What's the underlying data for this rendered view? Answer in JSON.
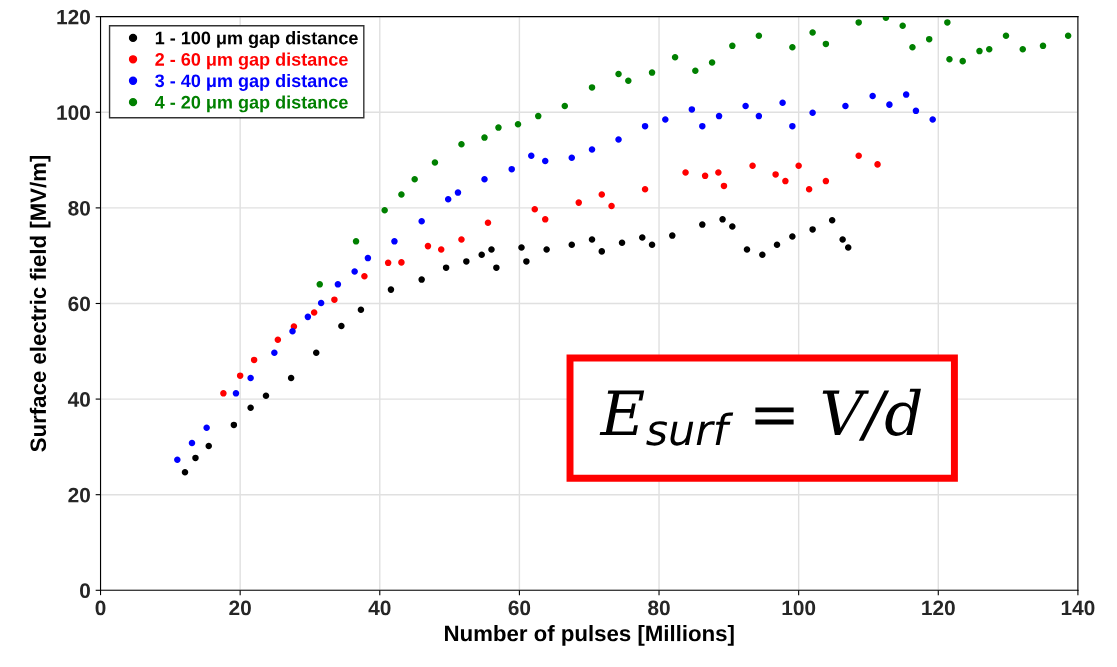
{
  "chart_data": {
    "type": "scatter",
    "xlabel": "Number of pulses [Millions]",
    "ylabel": "Surface electric field [MV/m]",
    "xlim": [
      0,
      140
    ],
    "xticks": [
      0,
      20,
      40,
      60,
      80,
      100,
      120,
      140
    ],
    "ylim": [
      0,
      120
    ],
    "yticks": [
      0,
      20,
      40,
      60,
      80,
      100,
      120
    ],
    "grid": true,
    "legend": "top left",
    "marker": "circle",
    "annotations": [
      "E$_{surf}$ = V/d"
    ],
    "series": [
      {
        "name": "1 - 100 μm gap distance",
        "color": "#000000",
        "x": [
          12.1,
          13.6,
          15.5,
          19.1,
          21.5,
          23.7,
          27.3,
          30.9,
          34.5,
          37.3,
          41.6,
          46,
          49.5,
          52.4,
          54.6,
          56,
          56.7,
          60.3,
          61,
          63.9,
          67.5,
          70.4,
          71.8,
          74.7,
          77.6,
          79,
          81.9,
          86.2,
          89.1,
          90.5,
          92.6,
          94.8,
          96.9,
          99.1,
          102,
          104.8,
          106.3,
          107.1
        ],
        "values": [
          24.7,
          27.7,
          30.2,
          34.6,
          38.2,
          40.7,
          44.4,
          49.7,
          55.3,
          58.7,
          62.9,
          65,
          67.5,
          68.8,
          70.2,
          71.3,
          67.5,
          71.7,
          68.8,
          71.3,
          72.3,
          73.4,
          70.9,
          72.7,
          73.8,
          72.3,
          74.2,
          76.5,
          77.6,
          76.1,
          71.3,
          70.2,
          72.3,
          74,
          75.5,
          77.4,
          73.4,
          71.7
        ]
      },
      {
        "name": "2 - 60 μm gap distance",
        "color": "#ff0000",
        "x": [
          17.6,
          20,
          22,
          25.4,
          27.7,
          30.6,
          33.5,
          37.8,
          41.2,
          43.1,
          46.9,
          48.8,
          51.7,
          55.5,
          62.2,
          63.7,
          68.5,
          71.8,
          73.2,
          78,
          83.8,
          86.6,
          88.5,
          89.3,
          93.4,
          96.7,
          98.1,
          100,
          101.5,
          103.9,
          108.6,
          111.3
        ],
        "values": [
          41.2,
          44.9,
          48.2,
          52.4,
          55.2,
          58.1,
          60.8,
          65.7,
          68.5,
          68.6,
          72,
          71.3,
          73.4,
          76.9,
          79.7,
          77.6,
          81.1,
          82.8,
          80.4,
          83.9,
          87.4,
          86.7,
          87.4,
          84.6,
          88.8,
          87,
          85.6,
          88.8,
          83.9,
          85.6,
          90.9,
          89.1
        ]
      },
      {
        "name": "3 - 40 μm gap distance",
        "color": "#0000ff",
        "x": [
          11,
          13.1,
          15.2,
          19.4,
          21.5,
          24.9,
          27.5,
          29.7,
          31.6,
          34,
          36.4,
          38.3,
          42.1,
          46,
          49.8,
          51.2,
          55,
          58.9,
          61.7,
          63.7,
          67.5,
          70.4,
          74.2,
          78,
          80.9,
          84.7,
          86.2,
          88.6,
          92.4,
          94.3,
          97.7,
          99.1,
          102,
          106.7,
          110.6,
          113,
          115.4,
          116.8,
          119.2
        ],
        "values": [
          27.3,
          30.8,
          34,
          41.2,
          44.4,
          49.7,
          54.2,
          57.2,
          60.1,
          64,
          66.7,
          69.5,
          73,
          77.2,
          81.8,
          83.2,
          86,
          88.1,
          90.9,
          89.8,
          90.5,
          92.2,
          94.3,
          97.1,
          98.5,
          100.6,
          97.1,
          99.2,
          101.3,
          99.2,
          102,
          97.1,
          99.9,
          101.3,
          103.4,
          101.6,
          103.7,
          100.3,
          98.5
        ]
      },
      {
        "name": "4 - 20 μm gap distance",
        "color": "#008000",
        "x": [
          31.4,
          36.6,
          40.7,
          43.1,
          45,
          47.9,
          51.7,
          55,
          57,
          59.8,
          62.7,
          66.5,
          70.4,
          74.2,
          75.6,
          79,
          82.3,
          85.2,
          87.6,
          90.5,
          94.3,
          99.1,
          102,
          103.9,
          108.6,
          112.5,
          114.9,
          116.3,
          118.7,
          121.3,
          121.6,
          123.5,
          125.9,
          127.3,
          129.7,
          132.1,
          135,
          138.6
        ],
        "values": [
          64,
          73,
          79.5,
          82.8,
          86,
          89.5,
          93.3,
          94.7,
          96.8,
          97.5,
          99.2,
          101.3,
          105.2,
          108,
          106.6,
          108.3,
          111.5,
          108.7,
          110.4,
          113.9,
          116,
          113.6,
          116.7,
          114.3,
          118.8,
          119.8,
          118.1,
          113.6,
          115.3,
          118.8,
          111.1,
          110.7,
          112.8,
          113.2,
          116,
          113.2,
          113.9,
          116
        ]
      }
    ]
  }
}
